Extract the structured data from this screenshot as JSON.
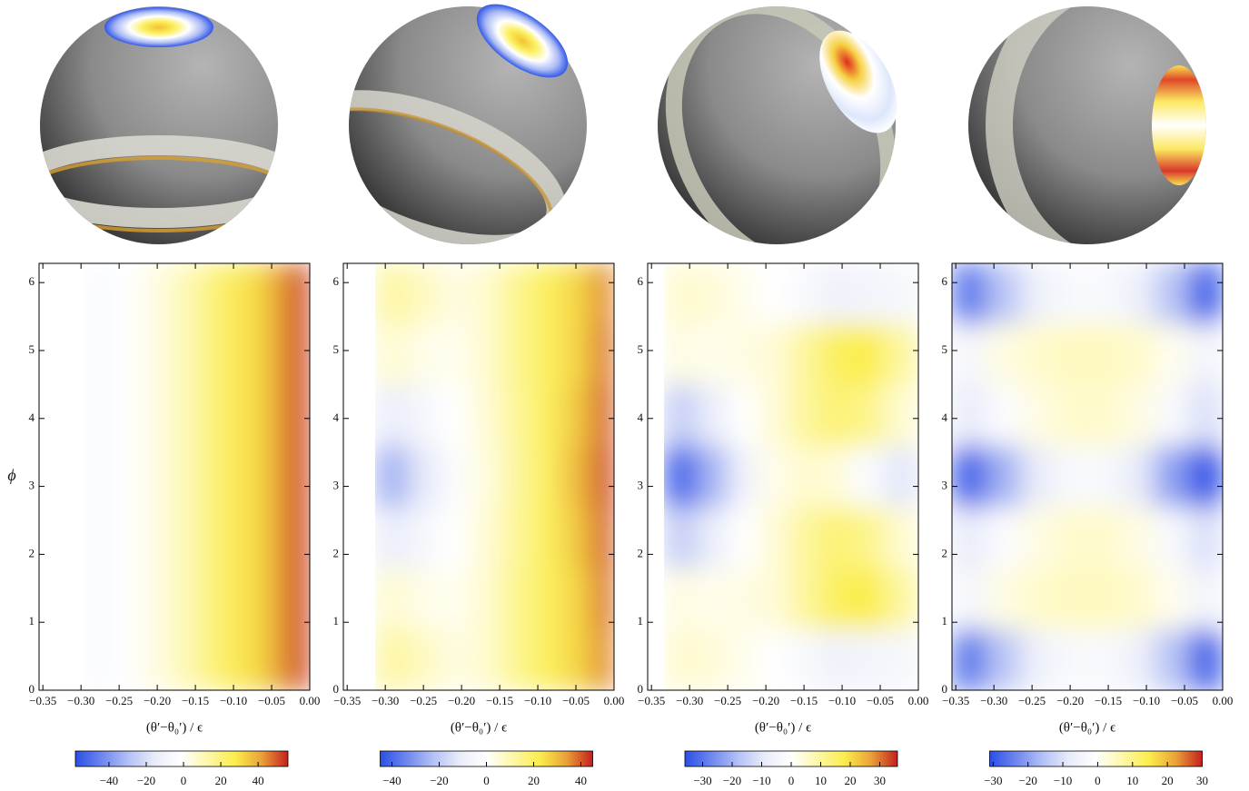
{
  "chart_data": [
    {
      "type": "heatmap",
      "xlabel": "(θ′−θ₀′) / ϵ",
      "ylabel": "ϕ",
      "xlim": [
        -0.355,
        0
      ],
      "ylim": [
        0,
        6.283
      ],
      "xticks": [
        {
          "value": -0.35,
          "label": "−0.35"
        },
        {
          "value": -0.3,
          "label": "−0.30"
        },
        {
          "value": -0.25,
          "label": "−0.25"
        },
        {
          "value": -0.2,
          "label": "−0.20"
        },
        {
          "value": -0.15,
          "label": "−0.15"
        },
        {
          "value": -0.1,
          "label": "−0.10"
        },
        {
          "value": -0.05,
          "label": "−0.05"
        },
        {
          "value": 0,
          "label": "0.00"
        }
      ],
      "yticks": [
        0,
        1,
        2,
        3,
        4,
        5,
        6
      ],
      "xedges": [
        -0.297,
        -0.26,
        -0.22,
        -0.18,
        -0.14,
        -0.1,
        -0.06,
        -0.03,
        0
      ],
      "yedges": [
        0,
        6.283
      ],
      "z": [
        [
          -4,
          -2,
          4,
          12,
          22,
          30,
          40,
          52
        ]
      ],
      "clim": [
        -58,
        56
      ],
      "cticks": [
        {
          "value": -40,
          "label": "−40"
        },
        {
          "value": -20,
          "label": "−20"
        },
        0,
        20,
        40
      ],
      "colormap": [
        "#2b4fe6",
        "#6f87ee",
        "#b4c1f5",
        "#e9ecf9",
        "#ffffff",
        "#fdf7a8",
        "#fbee4c",
        "#e9a338",
        "#c51f1e"
      ]
    },
    {
      "type": "heatmap",
      "xlabel": "(θ′−θ₀′) / ϵ",
      "xlim": [
        -0.355,
        0
      ],
      "ylim": [
        0,
        6.283
      ],
      "xticks": [
        {
          "value": -0.35,
          "label": "−0.35"
        },
        {
          "value": -0.3,
          "label": "−0.30"
        },
        {
          "value": -0.25,
          "label": "−0.25"
        },
        {
          "value": -0.2,
          "label": "−0.20"
        },
        {
          "value": -0.15,
          "label": "−0.15"
        },
        {
          "value": -0.1,
          "label": "−0.10"
        },
        {
          "value": -0.05,
          "label": "−0.05"
        },
        {
          "value": 0,
          "label": "0.00"
        }
      ],
      "yticks": [
        0,
        1,
        2,
        3,
        4,
        5,
        6
      ],
      "xedges": [
        -0.313,
        -0.27,
        -0.23,
        -0.19,
        -0.15,
        -0.11,
        -0.07,
        -0.03,
        0
      ],
      "yedges": [
        0,
        0.9,
        1.8,
        2.7,
        3.6,
        4.5,
        5.4,
        6.283
      ],
      "z": [
        [
          12,
          8,
          4,
          6,
          14,
          20,
          26,
          36
        ],
        [
          6,
          3,
          2,
          6,
          14,
          20,
          26,
          38
        ],
        [
          -10,
          -5,
          0,
          5,
          13,
          20,
          28,
          40
        ],
        [
          -25,
          -12,
          -2,
          4,
          12,
          20,
          30,
          42
        ],
        [
          -10,
          -5,
          0,
          5,
          13,
          20,
          28,
          40
        ],
        [
          6,
          3,
          2,
          6,
          14,
          20,
          26,
          38
        ],
        [
          12,
          8,
          4,
          6,
          14,
          20,
          26,
          36
        ]
      ],
      "clim": [
        -45,
        45
      ],
      "cticks": [
        {
          "value": -40,
          "label": "−40"
        },
        {
          "value": -20,
          "label": "−20"
        },
        0,
        20,
        40
      ],
      "colormap": [
        "#2b4fe6",
        "#6f87ee",
        "#b4c1f5",
        "#e9ecf9",
        "#ffffff",
        "#fdf7a8",
        "#fbee4c",
        "#e9a338",
        "#c51f1e"
      ]
    },
    {
      "type": "heatmap",
      "xlabel": "(θ′−θ₀′) / ϵ",
      "xlim": [
        -0.355,
        0
      ],
      "ylim": [
        0,
        6.283
      ],
      "xticks": [
        {
          "value": -0.35,
          "label": "−0.35"
        },
        {
          "value": -0.3,
          "label": "−0.30"
        },
        {
          "value": -0.25,
          "label": "−0.25"
        },
        {
          "value": -0.2,
          "label": "−0.20"
        },
        {
          "value": -0.15,
          "label": "−0.15"
        },
        {
          "value": -0.1,
          "label": "−0.10"
        },
        {
          "value": -0.05,
          "label": "−0.05"
        },
        {
          "value": 0,
          "label": "0.00"
        }
      ],
      "yticks": [
        0,
        1,
        2,
        3,
        4,
        5,
        6
      ],
      "xedges": [
        -0.333,
        -0.29,
        -0.25,
        -0.21,
        -0.17,
        -0.13,
        -0.09,
        -0.045,
        0
      ],
      "yedges": [
        0,
        0.9,
        1.8,
        2.7,
        3.6,
        4.5,
        5.4,
        6.283
      ],
      "z": [
        [
          5,
          4,
          2,
          0,
          -3,
          -6,
          -5,
          -4
        ],
        [
          3,
          2,
          3,
          4,
          10,
          16,
          18,
          10
        ],
        [
          -15,
          -8,
          0,
          4,
          10,
          14,
          12,
          5
        ],
        [
          -32,
          -20,
          -6,
          2,
          5,
          4,
          -2,
          -10
        ],
        [
          -15,
          -8,
          0,
          4,
          10,
          14,
          12,
          5
        ],
        [
          3,
          2,
          3,
          4,
          10,
          16,
          18,
          10
        ],
        [
          5,
          4,
          2,
          0,
          -3,
          -6,
          -5,
          -4
        ]
      ],
      "clim": [
        -36,
        36
      ],
      "cticks": [
        {
          "value": -30,
          "label": "−30"
        },
        {
          "value": -20,
          "label": "−20"
        },
        {
          "value": -10,
          "label": "−10"
        },
        0,
        10,
        20,
        30
      ],
      "colormap": [
        "#2b4fe6",
        "#6f87ee",
        "#b4c1f5",
        "#e9ecf9",
        "#ffffff",
        "#fdf7a8",
        "#fbee4c",
        "#e9a338",
        "#c51f1e"
      ]
    },
    {
      "type": "heatmap",
      "xlabel": "(θ′−θ₀′) / ϵ",
      "xlim": [
        -0.355,
        0
      ],
      "ylim": [
        0,
        6.283
      ],
      "xticks": [
        {
          "value": -0.35,
          "label": "−0.35"
        },
        {
          "value": -0.3,
          "label": "−0.30"
        },
        {
          "value": -0.25,
          "label": "−0.25"
        },
        {
          "value": -0.2,
          "label": "−0.20"
        },
        {
          "value": -0.15,
          "label": "−0.15"
        },
        {
          "value": -0.1,
          "label": "−0.10"
        },
        {
          "value": -0.05,
          "label": "−0.05"
        },
        {
          "value": 0,
          "label": "0.00"
        }
      ],
      "yticks": [
        0,
        1,
        2,
        3,
        4,
        5,
        6
      ],
      "xedges": [
        -0.355,
        -0.31,
        -0.265,
        -0.22,
        -0.18,
        -0.135,
        -0.09,
        -0.045,
        0
      ],
      "yedges": [
        0,
        0.9,
        1.8,
        2.7,
        3.6,
        4.5,
        5.4,
        6.283
      ],
      "z": [
        [
          -25,
          -15,
          -6,
          -3,
          -3,
          -6,
          -15,
          -28
        ],
        [
          -4,
          2,
          4,
          5,
          5,
          4,
          1,
          -5
        ],
        [
          -8,
          -2,
          2,
          4,
          4,
          2,
          -3,
          -10
        ],
        [
          -28,
          -18,
          -8,
          -3,
          -3,
          -8,
          -20,
          -30
        ],
        [
          -8,
          -2,
          2,
          4,
          4,
          2,
          -3,
          -10
        ],
        [
          -4,
          2,
          4,
          5,
          5,
          4,
          1,
          -5
        ],
        [
          -25,
          -15,
          -6,
          -3,
          -3,
          -6,
          -15,
          -28
        ]
      ],
      "clim": [
        -31,
        30
      ],
      "cticks": [
        {
          "value": -30,
          "label": "−30"
        },
        {
          "value": -20,
          "label": "−20"
        },
        {
          "value": -10,
          "label": "−10"
        },
        0,
        10,
        20,
        30
      ],
      "colormap": [
        "#2b4fe6",
        "#6f87ee",
        "#b4c1f5",
        "#e9ecf9",
        "#ffffff",
        "#fdf7a8",
        "#fbee4c",
        "#e9a338",
        "#c51f1e"
      ]
    }
  ]
}
